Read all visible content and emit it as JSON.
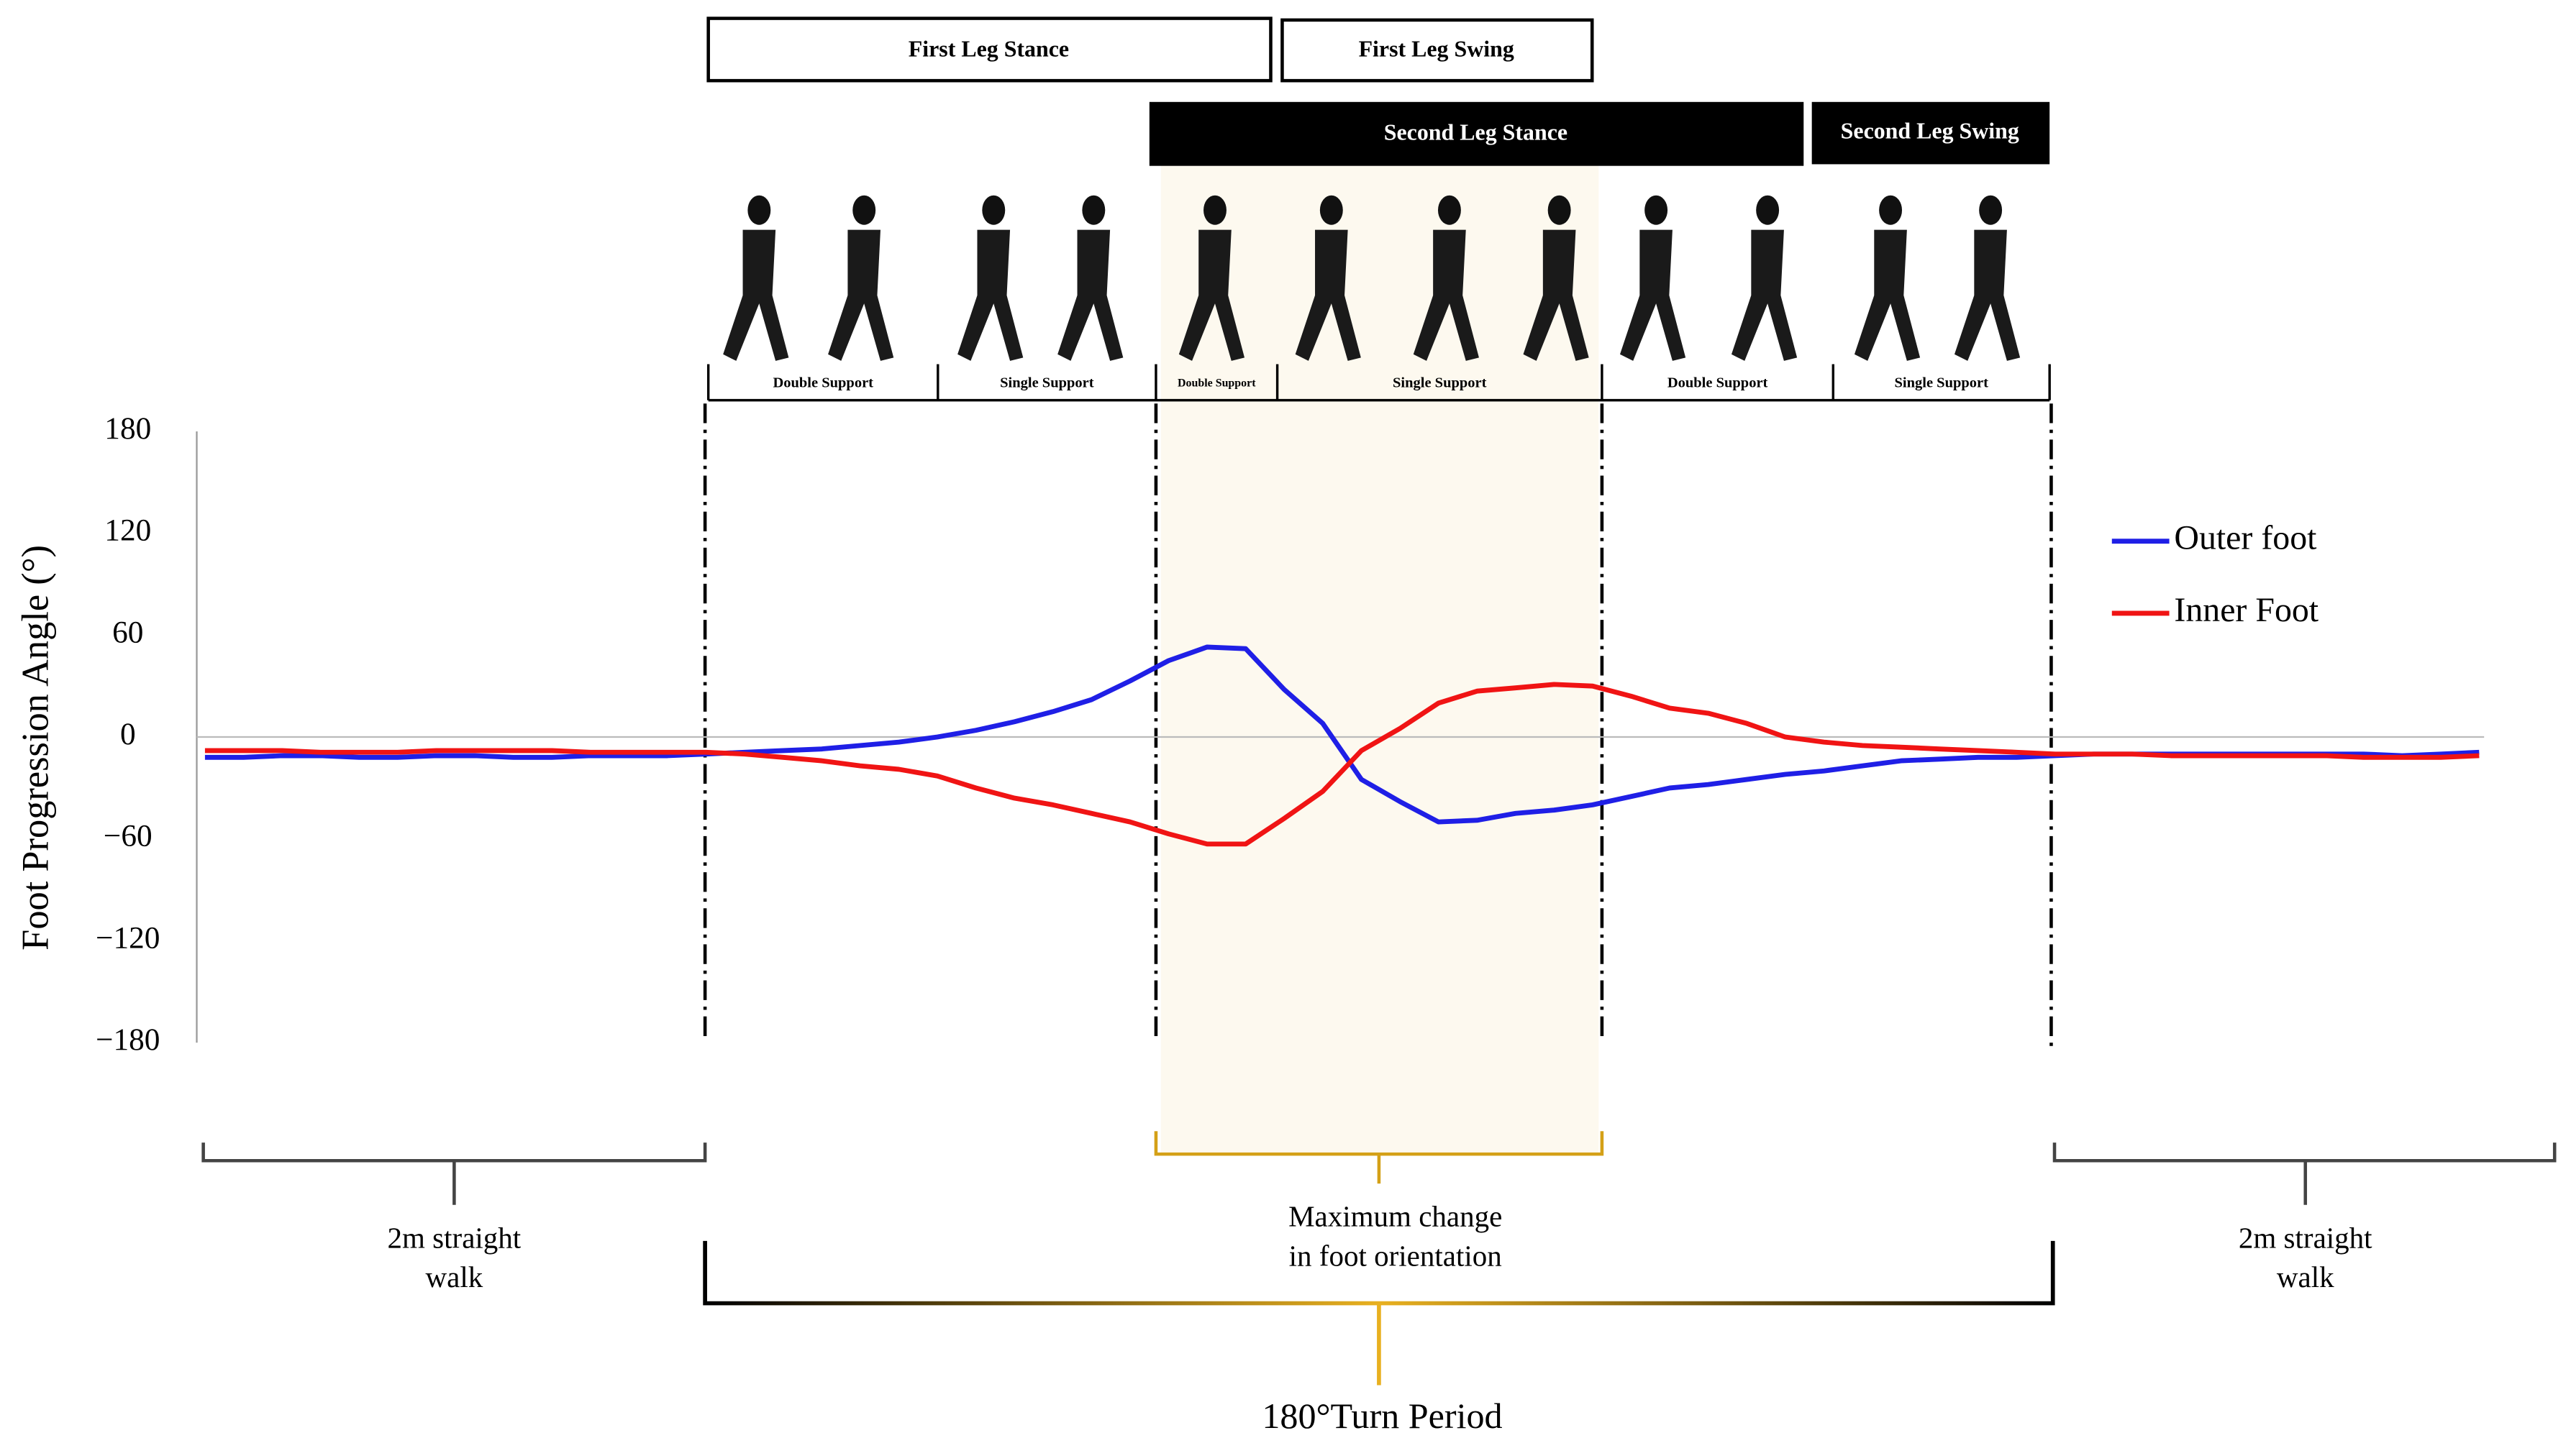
{
  "chart_data": {
    "type": "line",
    "y_label": "Foot Progression Angle (°)",
    "ylim": [
      -180,
      180
    ],
    "yticks": [
      180,
      120,
      60,
      0,
      {
        "value": -60,
        "label": "−60"
      },
      {
        "value": -120,
        "label": "−120"
      },
      {
        "value": -180,
        "label": "−180"
      }
    ],
    "legend": "upper right",
    "series": [
      {
        "name": "Outer foot",
        "color": "#1f1fe6",
        "values": [
          -12,
          -12,
          -11,
          -11,
          -12,
          -12,
          -11,
          -11,
          -12,
          -12,
          -11,
          -11,
          -11,
          -10,
          -9,
          -8,
          -7,
          -5,
          -3,
          0,
          4,
          9,
          15,
          22,
          33,
          45,
          53,
          52,
          28,
          8,
          -25,
          -38,
          -50,
          -49,
          -45,
          -43,
          -40,
          -35,
          -30,
          -28,
          -25,
          -22,
          -20,
          -17,
          -14,
          -13,
          -12,
          -12,
          -11,
          -10,
          -10,
          -10,
          -10,
          -10,
          -10,
          -10,
          -10,
          -11,
          -10,
          -9
        ]
      },
      {
        "name": "Inner Foot",
        "color": "#f01414",
        "values": [
          -8,
          -8,
          -8,
          -9,
          -9,
          -9,
          -8,
          -8,
          -8,
          -8,
          -9,
          -9,
          -9,
          -9,
          -10,
          -12,
          -14,
          -17,
          -19,
          -23,
          -30,
          -36,
          -40,
          -45,
          -50,
          -57,
          -63,
          -63,
          -48,
          -32,
          -8,
          5,
          20,
          27,
          29,
          31,
          30,
          24,
          17,
          14,
          8,
          0,
          -3,
          -5,
          -6,
          -7,
          -8,
          -9,
          -10,
          -10,
          -10,
          -11,
          -11,
          -11,
          -11,
          -11,
          -12,
          -12,
          -12,
          -11
        ]
      }
    ],
    "phases": {
      "first_leg": [
        "First Leg Stance",
        "First Leg Swing"
      ],
      "second_leg": [
        "Second Leg Stance",
        "Second Leg Swing"
      ],
      "support": [
        "Double Support",
        "Single Support",
        "Double Support",
        "Single Support",
        "Double Support",
        "Single Support"
      ]
    },
    "annotations": {
      "left_walk": [
        "2m straight",
        "walk"
      ],
      "max_change": [
        "Maximum change",
        "in foot orientation"
      ],
      "turn": "180°Turn Period",
      "right_walk": [
        "2m straight",
        "walk"
      ]
    }
  }
}
